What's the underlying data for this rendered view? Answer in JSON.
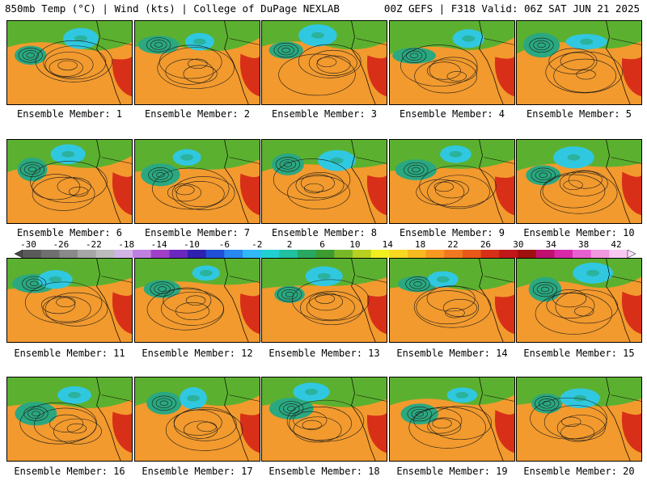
{
  "header": {
    "left": "850mb Temp (°C) | Wind (kts) | College of DuPage NEXLAB",
    "right": "00Z GEFS | F318 Valid: 06Z SAT JUN 21 2025"
  },
  "members": [
    {
      "label": "Ensemble Member: 1"
    },
    {
      "label": "Ensemble Member: 2"
    },
    {
      "label": "Ensemble Member: 3"
    },
    {
      "label": "Ensemble Member: 4"
    },
    {
      "label": "Ensemble Member: 5"
    },
    {
      "label": "Ensemble Member: 6"
    },
    {
      "label": "Ensemble Member: 7"
    },
    {
      "label": "Ensemble Member: 8"
    },
    {
      "label": "Ensemble Member: 9"
    },
    {
      "label": "Ensemble Member: 10"
    },
    {
      "label": "Ensemble Member: 11"
    },
    {
      "label": "Ensemble Member: 12"
    },
    {
      "label": "Ensemble Member: 13"
    },
    {
      "label": "Ensemble Member: 14"
    },
    {
      "label": "Ensemble Member: 15"
    },
    {
      "label": "Ensemble Member: 16"
    },
    {
      "label": "Ensemble Member: 17"
    },
    {
      "label": "Ensemble Member: 18"
    },
    {
      "label": "Ensemble Member: 19"
    },
    {
      "label": "Ensemble Member: 20"
    }
  ],
  "colorbar": {
    "ticks": [
      "-30",
      "-26",
      "-22",
      "-18",
      "-14",
      "-10",
      "-6",
      "-2",
      "2",
      "6",
      "10",
      "14",
      "18",
      "22",
      "26",
      "30",
      "34",
      "38",
      "42"
    ],
    "colors": [
      "#5a5a5a",
      "#707070",
      "#8a8a8a",
      "#a6a6a6",
      "#bcbcbc",
      "#d2b4e6",
      "#c080e0",
      "#a040c8",
      "#6a28c0",
      "#3020b0",
      "#2050d8",
      "#2888f0",
      "#30b8f8",
      "#20d0d0",
      "#20c0a0",
      "#28a860",
      "#3c9c30",
      "#78b828",
      "#b8d020",
      "#f0f020",
      "#f8d820",
      "#f8b820",
      "#f89820",
      "#f07820",
      "#e85818",
      "#d83018",
      "#c01818",
      "#a01010",
      "#c01070",
      "#d828a8",
      "#e860d0",
      "#f098e0",
      "#f8c8f0"
    ]
  },
  "palette": {
    "warm": "#f29a2e",
    "hot": "#d83018",
    "cool": "#2aa880",
    "cold": "#30c8e0",
    "green": "#5cb030"
  }
}
